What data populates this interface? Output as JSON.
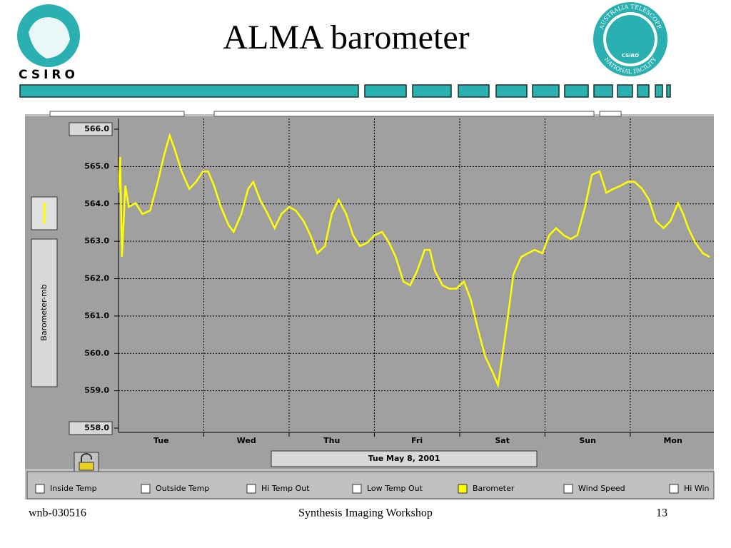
{
  "chart_data": {
    "type": "line",
    "title": "ALMA barometer",
    "ylabel": "Barometer-mb",
    "x": [
      0.0,
      0.02,
      0.04,
      0.08,
      0.12,
      0.2,
      0.28,
      0.37,
      0.45,
      0.54,
      0.6,
      0.66,
      0.74,
      0.83,
      0.91,
      0.99,
      1.05,
      1.12,
      1.2,
      1.29,
      1.35,
      1.44,
      1.52,
      1.58,
      1.66,
      1.75,
      1.83,
      1.91,
      2.0,
      2.08,
      2.17,
      2.25,
      2.33,
      2.42,
      2.5,
      2.58,
      2.67,
      2.75,
      2.83,
      2.92,
      3.0,
      3.09,
      3.17,
      3.25,
      3.34,
      3.42,
      3.5,
      3.59,
      3.65,
      3.71,
      3.8,
      3.88,
      3.96,
      4.05,
      4.13,
      4.21,
      4.3,
      4.38,
      4.45,
      4.51,
      4.57,
      4.63,
      4.72,
      4.8,
      4.88,
      4.97,
      5.05,
      5.13,
      5.22,
      5.3,
      5.38,
      5.47,
      5.55,
      5.64,
      5.72,
      5.8,
      5.89,
      5.97,
      6.05,
      6.14,
      6.22,
      6.3,
      6.39,
      6.47,
      6.56,
      6.62,
      6.68,
      6.76,
      6.85,
      6.93
    ],
    "series": [
      {
        "name": "Barometer",
        "color": "#ffff00",
        "values": [
          564.3,
          565.26,
          562.58,
          564.49,
          563.92,
          564.02,
          563.73,
          563.82,
          564.49,
          565.35,
          565.83,
          565.45,
          564.87,
          564.4,
          564.59,
          564.87,
          564.87,
          564.49,
          563.92,
          563.44,
          563.25,
          563.73,
          564.4,
          564.59,
          564.11,
          563.73,
          563.35,
          563.73,
          563.92,
          563.82,
          563.54,
          563.16,
          562.68,
          562.87,
          563.73,
          564.11,
          563.73,
          563.16,
          562.87,
          562.97,
          563.16,
          563.25,
          562.97,
          562.58,
          561.92,
          561.82,
          562.2,
          562.77,
          562.77,
          562.2,
          561.82,
          561.73,
          561.73,
          561.92,
          561.44,
          560.68,
          559.91,
          559.53,
          559.15,
          560.1,
          561.06,
          562.11,
          562.58,
          562.68,
          562.77,
          562.68,
          563.16,
          563.35,
          563.16,
          563.06,
          563.16,
          563.92,
          564.78,
          564.87,
          564.3,
          564.4,
          564.49,
          564.59,
          564.59,
          564.4,
          564.11,
          563.54,
          563.35,
          563.54,
          564.02,
          563.73,
          563.35,
          562.97,
          562.68,
          562.58
        ]
      }
    ],
    "xlim": [
      0,
      6.98
    ],
    "xticks": [
      {
        "value": 0.5,
        "label": "Tue"
      },
      {
        "value": 1.5,
        "label": "Wed"
      },
      {
        "value": 2.5,
        "label": "Thu"
      },
      {
        "value": 3.5,
        "label": "Fri"
      },
      {
        "value": 4.5,
        "label": "Sat"
      },
      {
        "value": 5.5,
        "label": "Sun"
      },
      {
        "value": 6.5,
        "label": "Mon"
      }
    ],
    "ylim": [
      558,
      566
    ],
    "yticks": [
      {
        "value": 558,
        "label": "558.0"
      },
      {
        "value": 559,
        "label": "559.0"
      },
      {
        "value": 560,
        "label": "560.0"
      },
      {
        "value": 561,
        "label": "561.0"
      },
      {
        "value": 562,
        "label": "562.0"
      },
      {
        "value": 563,
        "label": "563.0"
      },
      {
        "value": 564,
        "label": "564.0"
      },
      {
        "value": 565,
        "label": "565.0"
      },
      {
        "value": 566,
        "label": "566.0"
      }
    ],
    "grid": true
  },
  "ui": {
    "logo_left": "CSIRO",
    "logo_right": "CSIRO",
    "logo_right_top": "AUSTRALIA TELESCOPE",
    "logo_right_bottom": "NATIONAL FACILITY",
    "date": "Tue May 8, 2001",
    "checkboxes": [
      "Inside Temp",
      "Outside Temp",
      "Hi Temp Out",
      "Low Temp Out",
      "Wind Speed",
      "Hi Win"
    ]
  },
  "footer": {
    "left": "wnb-030516",
    "center": "Synthesis Imaging Workshop",
    "right": "13"
  }
}
